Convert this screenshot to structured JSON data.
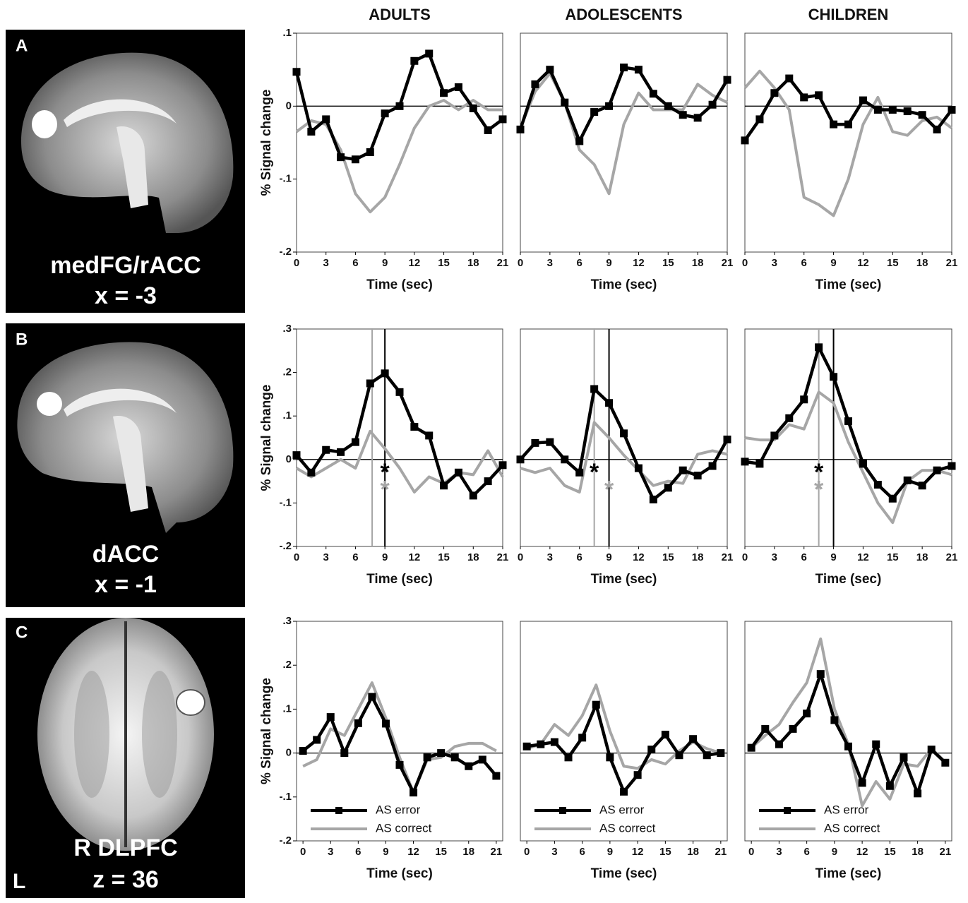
{
  "chart_data": [
    {
      "type": "line",
      "title": "ADULTS",
      "x_label": "Time (sec)",
      "y_label": "% Signal change",
      "x": [
        0,
        1.5,
        3,
        4.5,
        6,
        7.5,
        9,
        10.5,
        12,
        13.5,
        15,
        16.5,
        18,
        19.5,
        21
      ],
      "xlim": [
        0,
        21
      ],
      "xticks": [
        0,
        3,
        6,
        9,
        12,
        15,
        18,
        21
      ],
      "ylim": [
        -0.2,
        0.1
      ],
      "yticks": [
        {
          "value": -0.2,
          "label": "-.2"
        },
        {
          "value": -0.1,
          "label": "-.1"
        },
        0,
        {
          "value": 0.1,
          "label": ".1"
        }
      ],
      "series": [
        {
          "color": "#000000",
          "marker": "square",
          "values": [
            0.047,
            -0.035,
            -0.018,
            -0.07,
            -0.073,
            -0.063,
            -0.01,
            0,
            0.062,
            0.072,
            0.018,
            0.026,
            -0.003,
            -0.033,
            -0.018
          ]
        },
        {
          "color": "#a6a6a6",
          "values": [
            -0.035,
            -0.02,
            -0.025,
            -0.06,
            -0.12,
            -0.145,
            -0.125,
            -0.08,
            -0.03,
            0,
            0.008,
            -0.005,
            0.008,
            -0.005,
            -0.005
          ]
        }
      ]
    },
    {
      "type": "line",
      "title": "ADOLESCENTS",
      "x_label": "Time (sec)",
      "x": [
        0,
        1.5,
        3,
        4.5,
        6,
        7.5,
        9,
        10.5,
        12,
        13.5,
        15,
        16.5,
        18,
        19.5,
        21
      ],
      "xlim": [
        0,
        21
      ],
      "xticks": [
        0,
        3,
        6,
        9,
        12,
        15,
        18,
        21
      ],
      "ylim": [
        -0.2,
        0.1
      ],
      "series": [
        {
          "color": "#000000",
          "marker": "square",
          "values": [
            -0.032,
            0.03,
            0.05,
            0.005,
            -0.048,
            -0.008,
            0,
            0.053,
            0.05,
            0.017,
            0,
            -0.012,
            -0.016,
            0.002,
            0.036
          ]
        },
        {
          "color": "#a6a6a6",
          "values": [
            -0.03,
            0.02,
            0.045,
            0.005,
            -0.06,
            -0.08,
            -0.12,
            -0.025,
            0.018,
            -0.005,
            -0.005,
            -0.005,
            0.03,
            0.015,
            0.005
          ]
        }
      ]
    },
    {
      "type": "line",
      "title": "CHILDREN",
      "x_label": "Time (sec)",
      "x": [
        0,
        1.5,
        3,
        4.5,
        6,
        7.5,
        9,
        10.5,
        12,
        13.5,
        15,
        16.5,
        18,
        19.5,
        21
      ],
      "xlim": [
        0,
        21
      ],
      "xticks": [
        0,
        3,
        6,
        9,
        12,
        15,
        18,
        21
      ],
      "ylim": [
        -0.2,
        0.1
      ],
      "series": [
        {
          "color": "#000000",
          "marker": "square",
          "values": [
            -0.047,
            -0.018,
            0.018,
            0.038,
            0.012,
            0.015,
            -0.025,
            -0.025,
            0.008,
            -0.005,
            -0.005,
            -0.007,
            -0.012,
            -0.032,
            -0.005
          ]
        },
        {
          "color": "#a6a6a6",
          "values": [
            0.025,
            0.048,
            0.025,
            -0.005,
            -0.125,
            -0.135,
            -0.15,
            -0.1,
            -0.025,
            0.012,
            -0.035,
            -0.04,
            -0.02,
            -0.015,
            -0.03
          ]
        }
      ]
    },
    {
      "type": "line",
      "x_label": "Time (sec)",
      "y_label": "% Signal change",
      "x": [
        0,
        1.5,
        3,
        4.5,
        6,
        7.5,
        9,
        10.5,
        12,
        13.5,
        15,
        16.5,
        18,
        19.5,
        21
      ],
      "xlim": [
        0,
        21
      ],
      "xticks": [
        0,
        3,
        6,
        9,
        12,
        15,
        18,
        21
      ],
      "ylim": [
        -0.2,
        0.3
      ],
      "yticks": [
        {
          "value": -0.2,
          "label": "-.2"
        },
        {
          "value": -0.1,
          "label": "-.1"
        },
        0,
        {
          "value": 0.1,
          "label": ".1"
        },
        {
          "value": 0.2,
          "label": ".2"
        },
        {
          "value": 0.3,
          "label": ".3"
        }
      ],
      "vlines": [
        {
          "x": 7.7,
          "color": "#a6a6a6"
        },
        {
          "x": 9,
          "color": "#000000"
        }
      ],
      "annotations": [
        {
          "text": "*",
          "x": 9,
          "y": -0.02,
          "color": "#000000"
        },
        {
          "text": "*",
          "x": 9,
          "y": -0.06,
          "color": "#a6a6a6"
        }
      ],
      "series": [
        {
          "color": "#000000",
          "marker": "square",
          "values": [
            0.01,
            -0.03,
            0.022,
            0.017,
            0.04,
            0.175,
            0.198,
            0.155,
            0.075,
            0.055,
            -0.06,
            -0.03,
            -0.083,
            -0.05,
            -0.013
          ]
        },
        {
          "color": "#a6a6a6",
          "values": [
            -0.02,
            -0.04,
            -0.02,
            0,
            -0.02,
            0.065,
            0.025,
            -0.02,
            -0.075,
            -0.04,
            -0.055,
            -0.03,
            -0.035,
            0.02,
            -0.04
          ]
        }
      ]
    },
    {
      "type": "line",
      "x_label": "Time (sec)",
      "x": [
        0,
        1.5,
        3,
        4.5,
        6,
        7.5,
        9,
        10.5,
        12,
        13.5,
        15,
        16.5,
        18,
        19.5,
        21
      ],
      "xlim": [
        0,
        21
      ],
      "xticks": [
        0,
        3,
        6,
        9,
        12,
        15,
        18,
        21
      ],
      "ylim": [
        -0.2,
        0.3
      ],
      "vlines": [
        {
          "x": 7.5,
          "color": "#a6a6a6"
        },
        {
          "x": 9,
          "color": "#000000"
        }
      ],
      "annotations": [
        {
          "text": "*",
          "x": 7.5,
          "y": -0.02,
          "color": "#000000"
        },
        {
          "text": "*",
          "x": 9,
          "y": -0.06,
          "color": "#a6a6a6"
        }
      ],
      "series": [
        {
          "color": "#000000",
          "marker": "square",
          "values": [
            0,
            0.038,
            0.04,
            0,
            -0.03,
            0.162,
            0.13,
            0.06,
            -0.02,
            -0.092,
            -0.065,
            -0.025,
            -0.037,
            -0.015,
            0.046
          ]
        },
        {
          "color": "#a6a6a6",
          "values": [
            -0.02,
            -0.03,
            -0.02,
            -0.06,
            -0.075,
            0.085,
            0.05,
            0.01,
            -0.025,
            -0.06,
            -0.05,
            -0.055,
            0.012,
            0.02,
            0.012
          ]
        }
      ]
    },
    {
      "type": "line",
      "x_label": "Time (sec)",
      "x": [
        0,
        1.5,
        3,
        4.5,
        6,
        7.5,
        9,
        10.5,
        12,
        13.5,
        15,
        16.5,
        18,
        19.5,
        21
      ],
      "xlim": [
        0,
        21
      ],
      "xticks": [
        0,
        3,
        6,
        9,
        12,
        15,
        18,
        21
      ],
      "ylim": [
        -0.2,
        0.3
      ],
      "vlines": [
        {
          "x": 7.5,
          "color": "#a6a6a6"
        },
        {
          "x": 9,
          "color": "#000000"
        }
      ],
      "annotations": [
        {
          "text": "*",
          "x": 7.5,
          "y": -0.02,
          "color": "#000000"
        },
        {
          "text": "*",
          "x": 7.5,
          "y": -0.06,
          "color": "#a6a6a6"
        }
      ],
      "series": [
        {
          "color": "#000000",
          "marker": "square",
          "values": [
            -0.005,
            -0.01,
            0.055,
            0.095,
            0.138,
            0.258,
            0.19,
            0.088,
            -0.01,
            -0.058,
            -0.09,
            -0.048,
            -0.06,
            -0.025,
            -0.015
          ]
        },
        {
          "color": "#a6a6a6",
          "values": [
            0.05,
            0.045,
            0.045,
            0.08,
            0.07,
            0.155,
            0.13,
            0.04,
            -0.03,
            -0.1,
            -0.145,
            -0.05,
            -0.025,
            -0.025,
            -0.035
          ]
        }
      ]
    },
    {
      "type": "line",
      "x_label": "Time (sec)",
      "y_label": "% Signal change",
      "legend": "lower left",
      "x": [
        0,
        1.5,
        3,
        4.5,
        6,
        7.5,
        9,
        10.5,
        12,
        13.5,
        15,
        16.5,
        18,
        19.5,
        21
      ],
      "xlim": [
        -0.7,
        21.7
      ],
      "xticks": [
        0,
        3,
        6,
        9,
        12,
        15,
        18,
        21
      ],
      "ylim": [
        -0.2,
        0.3
      ],
      "yticks": [
        {
          "value": -0.2,
          "label": "-.2"
        },
        {
          "value": -0.1,
          "label": "-.1"
        },
        0,
        {
          "value": 0.1,
          "label": ".1"
        },
        {
          "value": 0.2,
          "label": ".2"
        },
        {
          "value": 0.3,
          "label": ".3"
        }
      ],
      "series": [
        {
          "name": "AS error",
          "color": "#000000",
          "marker": "square",
          "values": [
            0.005,
            0.03,
            0.082,
            0,
            0.068,
            0.128,
            0.067,
            -0.027,
            -0.09,
            -0.01,
            0,
            -0.01,
            -0.03,
            -0.015,
            -0.052
          ]
        },
        {
          "name": "AS correct",
          "color": "#a6a6a6",
          "values": [
            -0.03,
            -0.015,
            0.055,
            0.04,
            0.1,
            0.16,
            0.08,
            -0.01,
            -0.09,
            -0.015,
            -0.01,
            0.015,
            0.022,
            0.022,
            0.005
          ]
        }
      ]
    },
    {
      "type": "line",
      "x_label": "Time (sec)",
      "legend": "lower left",
      "x": [
        0,
        1.5,
        3,
        4.5,
        6,
        7.5,
        9,
        10.5,
        12,
        13.5,
        15,
        16.5,
        18,
        19.5,
        21
      ],
      "xlim": [
        -0.7,
        21.7
      ],
      "xticks": [
        0,
        3,
        6,
        9,
        12,
        15,
        18,
        21
      ],
      "ylim": [
        -0.2,
        0.3
      ],
      "series": [
        {
          "name": "AS error",
          "color": "#000000",
          "marker": "square",
          "values": [
            0.015,
            0.02,
            0.025,
            -0.01,
            0.035,
            0.11,
            -0.01,
            -0.088,
            -0.05,
            0.008,
            0.042,
            -0.005,
            0.032,
            -0.005,
            0
          ]
        },
        {
          "name": "AS correct",
          "color": "#a6a6a6",
          "values": [
            0.01,
            0.02,
            0.065,
            0.04,
            0.085,
            0.155,
            0.05,
            -0.03,
            -0.035,
            -0.015,
            -0.025,
            0.005,
            0.025,
            0.01,
            0
          ]
        }
      ]
    },
    {
      "type": "line",
      "x_label": "Time (sec)",
      "legend": "lower left",
      "x": [
        0,
        1.5,
        3,
        4.5,
        6,
        7.5,
        9,
        10.5,
        12,
        13.5,
        15,
        16.5,
        18,
        19.5,
        21
      ],
      "xlim": [
        -0.7,
        21.7
      ],
      "xticks": [
        0,
        3,
        6,
        9,
        12,
        15,
        18,
        21
      ],
      "ylim": [
        -0.2,
        0.3
      ],
      "series": [
        {
          "name": "AS error",
          "color": "#000000",
          "marker": "square",
          "values": [
            0.012,
            0.055,
            0.02,
            0.055,
            0.09,
            0.18,
            0.075,
            0.015,
            -0.068,
            0.02,
            -0.075,
            -0.01,
            -0.092,
            0.008,
            -0.022
          ]
        },
        {
          "name": "AS correct",
          "color": "#a6a6a6",
          "values": [
            0.012,
            0.04,
            0.065,
            0.115,
            0.16,
            0.26,
            0.1,
            0.02,
            -0.12,
            -0.065,
            -0.105,
            -0.025,
            -0.03,
            0.01,
            -0.02
          ]
        }
      ]
    }
  ],
  "panels": [
    {
      "letter": "A",
      "region": "medFG/rACC",
      "coord": "x = -3"
    },
    {
      "letter": "B",
      "region": "dACC",
      "coord": "x = -1"
    },
    {
      "letter": "C",
      "region": "R DLPFC",
      "coord": "z = 36",
      "side": "L"
    }
  ]
}
